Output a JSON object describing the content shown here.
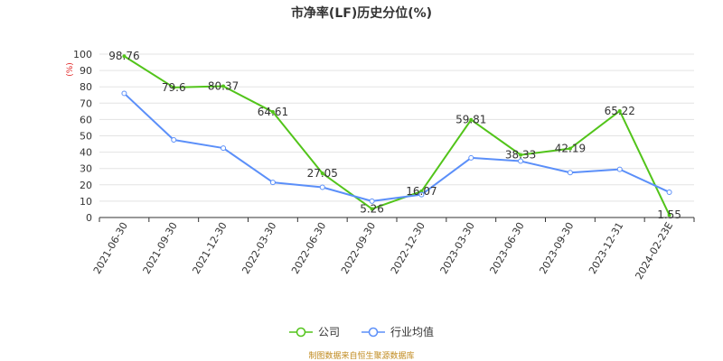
{
  "chart_data": {
    "type": "line",
    "title": "市净率(LF)历史分位(%)",
    "ylabel": "(%)",
    "xlabel": "",
    "ylim": [
      0,
      100
    ],
    "yticks": [
      0,
      10,
      20,
      30,
      40,
      50,
      60,
      70,
      80,
      90,
      100
    ],
    "grid": true,
    "legend_position": "bottom",
    "categories": [
      "2021-06-30",
      "2021-09-30",
      "2021-12-30",
      "2022-03-30",
      "2022-06-30",
      "2022-09-30",
      "2022-12-30",
      "2023-03-30",
      "2023-06-30",
      "2023-09-30",
      "2023-12-31",
      "2024-02-23E"
    ],
    "series": [
      {
        "name": "公司",
        "color": "#52c41a",
        "values": [
          98.76,
          79.6,
          80.37,
          64.61,
          27.05,
          5.26,
          16.07,
          59.81,
          38.33,
          42.19,
          65.22,
          1.55
        ],
        "labels": [
          "98.76",
          "79.6",
          "80.37",
          "64.61",
          "27.05",
          "5.26",
          "16.07",
          "59.81",
          "38.33",
          "42.19",
          "65.22",
          "1.55"
        ]
      },
      {
        "name": "行业均值",
        "color": "#5b8ff9",
        "values": [
          76,
          47.5,
          42.5,
          21.5,
          18.5,
          10,
          14,
          36.5,
          34.5,
          27.5,
          29.5,
          15.5
        ]
      }
    ]
  },
  "source_text": "制图数据来自恒生聚源数据库"
}
